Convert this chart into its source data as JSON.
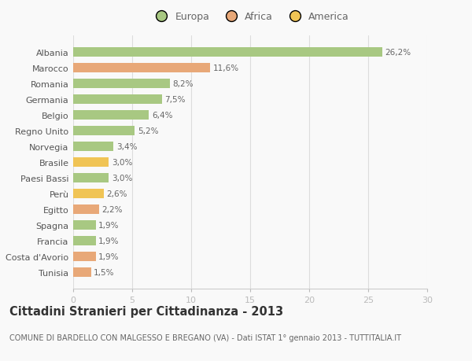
{
  "categories": [
    "Tunisia",
    "Costa d'Avorio",
    "Francia",
    "Spagna",
    "Egitto",
    "Perù",
    "Paesi Bassi",
    "Brasile",
    "Norvegia",
    "Regno Unito",
    "Belgio",
    "Germania",
    "Romania",
    "Marocco",
    "Albania"
  ],
  "values": [
    1.5,
    1.9,
    1.9,
    1.9,
    2.2,
    2.6,
    3.0,
    3.0,
    3.4,
    5.2,
    6.4,
    7.5,
    8.2,
    11.6,
    26.2
  ],
  "labels": [
    "1,5%",
    "1,9%",
    "1,9%",
    "1,9%",
    "2,2%",
    "2,6%",
    "3,0%",
    "3,0%",
    "3,4%",
    "5,2%",
    "6,4%",
    "7,5%",
    "8,2%",
    "11,6%",
    "26,2%"
  ],
  "continents": [
    "Africa",
    "Africa",
    "Europa",
    "Europa",
    "Africa",
    "America",
    "Europa",
    "America",
    "Europa",
    "Europa",
    "Europa",
    "Europa",
    "Europa",
    "Africa",
    "Europa"
  ],
  "colors": {
    "Europa": "#a8c882",
    "Africa": "#e8a878",
    "America": "#f0c455"
  },
  "legend_labels": [
    "Europa",
    "Africa",
    "America"
  ],
  "legend_colors": [
    "#a8c882",
    "#e8a878",
    "#f0c455"
  ],
  "xlim": [
    0,
    30
  ],
  "xticks": [
    0,
    5,
    10,
    15,
    20,
    25,
    30
  ],
  "title": "Cittadini Stranieri per Cittadinanza - 2013",
  "subtitle": "COMUNE DI BARDELLO CON MALGESSO E BREGANO (VA) - Dati ISTAT 1° gennaio 2013 - TUTTITALIA.IT",
  "background_color": "#f9f9f9",
  "bar_height": 0.62,
  "title_fontsize": 10.5,
  "subtitle_fontsize": 7,
  "label_fontsize": 7.5,
  "tick_fontsize": 8,
  "legend_fontsize": 9
}
